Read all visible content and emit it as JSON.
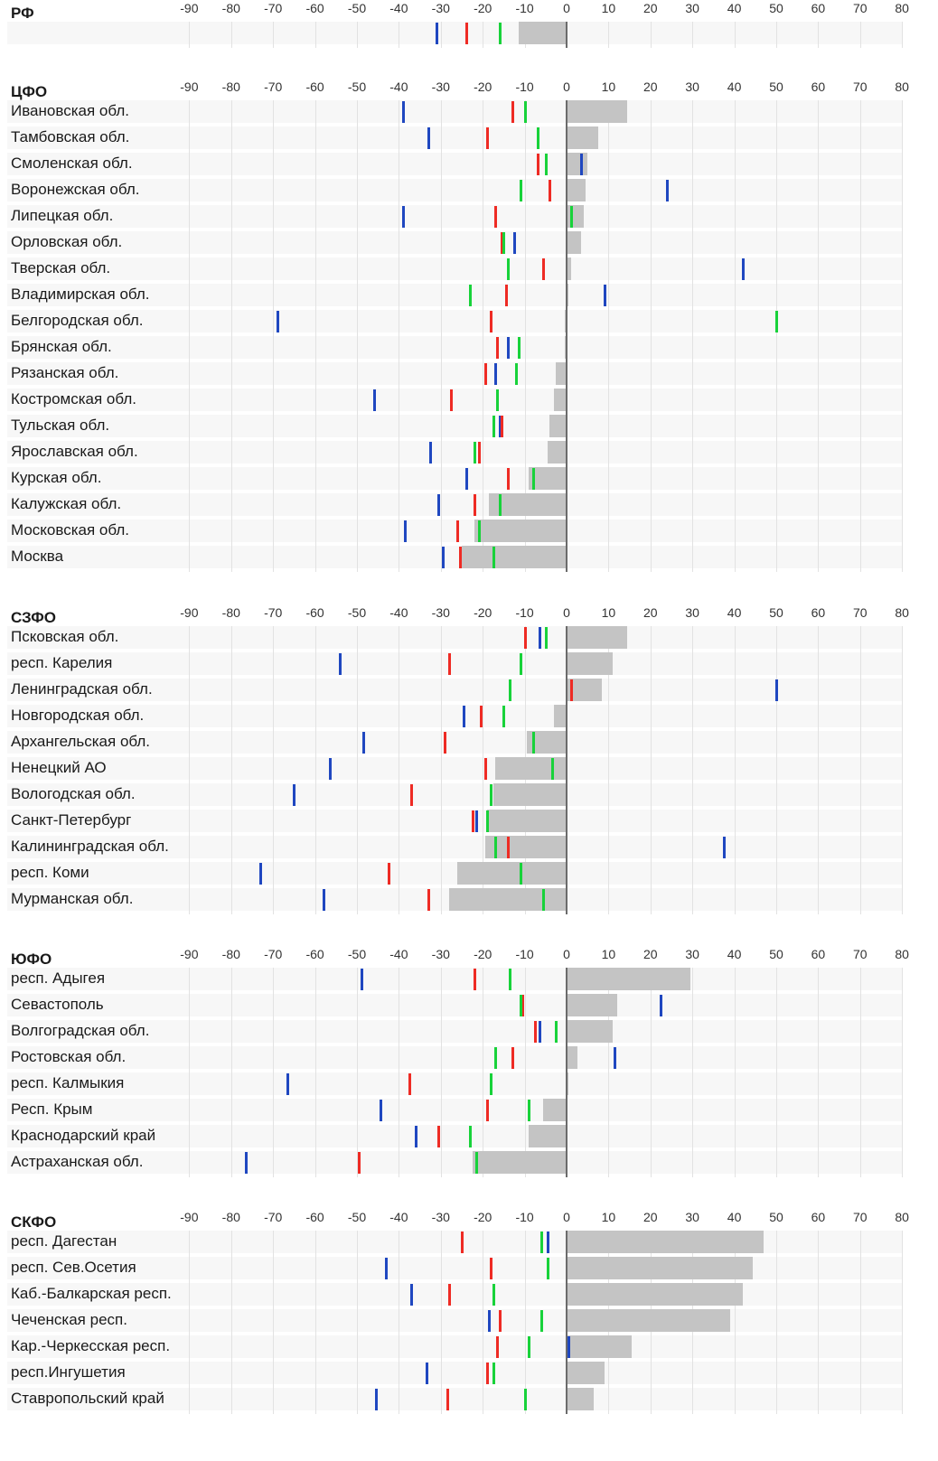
{
  "chart_data": {
    "type": "bar",
    "xlim": [
      -90,
      80
    ],
    "ticks": [
      -90,
      -80,
      -70,
      -60,
      -50,
      -40,
      -30,
      -20,
      -10,
      0,
      10,
      20,
      30,
      40,
      50,
      60,
      70,
      80
    ],
    "marker_colors": {
      "blue": "#1f47c0",
      "red": "#ee2b24",
      "green": "#18d23a"
    },
    "bar_color": "#c4c4c4",
    "groups": [
      {
        "title": "РФ",
        "rows": [
          {
            "label": "",
            "bar": -11.5,
            "blue": -31,
            "red": -24,
            "green": -16
          }
        ]
      },
      {
        "title": "ЦФО",
        "rows": [
          {
            "label": "Ивановская обл.",
            "bar": 14.5,
            "blue": -39,
            "red": -13,
            "green": -10
          },
          {
            "label": "Тамбовская обл.",
            "bar": 7.5,
            "blue": -33,
            "red": -19,
            "green": -7
          },
          {
            "label": "Смоленская обл.",
            "bar": 5,
            "blue": 3.5,
            "red": -7,
            "green": -5
          },
          {
            "label": "Воронежская обл.",
            "bar": 4.5,
            "blue": 24,
            "red": -4,
            "green": -11
          },
          {
            "label": "Липецкая обл.",
            "bar": 4,
            "blue": -39,
            "red": -17,
            "green": 1
          },
          {
            "label": "Орловская обл.",
            "bar": 3.5,
            "blue": -12.5,
            "red": -15.5,
            "green": -15
          },
          {
            "label": "Тверская обл.",
            "bar": 1,
            "blue": 42,
            "red": -5.5,
            "green": -14
          },
          {
            "label": "Владимирская обл.",
            "bar": 0.5,
            "blue": 9,
            "red": -14.5,
            "green": -23
          },
          {
            "label": "Белгородская обл.",
            "bar": -0.5,
            "blue": -69,
            "red": -18,
            "green": 50
          },
          {
            "label": "Брянская обл.",
            "bar": -0.5,
            "blue": -14,
            "red": -16.5,
            "green": -11.5
          },
          {
            "label": "Рязанская обл.",
            "bar": -2.5,
            "blue": -17,
            "red": -19.5,
            "green": -12
          },
          {
            "label": "Костромская обл.",
            "bar": -3,
            "blue": -46,
            "red": -27.5,
            "green": -16.5
          },
          {
            "label": "Тульская обл.",
            "bar": -4,
            "blue": -16,
            "red": -15.5,
            "green": -17.5
          },
          {
            "label": "Ярославская обл.",
            "bar": -4.5,
            "blue": -32.5,
            "red": -21,
            "green": -22
          },
          {
            "label": "Курская обл.",
            "bar": -9,
            "blue": -24,
            "red": -14,
            "green": -8
          },
          {
            "label": "Калужская обл.",
            "bar": -18.5,
            "blue": -30.5,
            "red": -22,
            "green": -16
          },
          {
            "label": "Московская обл.",
            "bar": -22,
            "blue": -38.5,
            "red": -26,
            "green": -21
          },
          {
            "label": "Москва",
            "bar": -25,
            "blue": -29.5,
            "red": -25.5,
            "green": -17.5
          }
        ]
      },
      {
        "title": "СЗФО",
        "rows": [
          {
            "label": "Псковская обл.",
            "bar": 14.5,
            "blue": -6.5,
            "red": -10,
            "green": -5
          },
          {
            "label": "респ. Карелия",
            "bar": 11,
            "blue": -54,
            "red": -28,
            "green": -11
          },
          {
            "label": "Ленинградская обл.",
            "bar": 8.5,
            "blue": 50,
            "red": 1,
            "green": -13.5
          },
          {
            "label": "Новгородская обл.",
            "bar": -3,
            "blue": -24.5,
            "red": -20.5,
            "green": -15
          },
          {
            "label": "Архангельская обл.",
            "bar": -9.5,
            "blue": -48.5,
            "red": -29,
            "green": -8
          },
          {
            "label": "Ненецкий АО",
            "bar": -17,
            "blue": -56.5,
            "red": -19.5,
            "green": -3.5
          },
          {
            "label": "Вологодская обл.",
            "bar": -17.5,
            "blue": -65,
            "red": -37,
            "green": -18
          },
          {
            "label": "Санкт-Петербург",
            "bar": -19,
            "blue": -21.5,
            "red": -22.5,
            "green": -19
          },
          {
            "label": "Калининградская обл.",
            "bar": -19.5,
            "blue": 37.5,
            "red": -14,
            "green": -17
          },
          {
            "label": "респ. Коми",
            "bar": -26,
            "blue": -73,
            "red": -42.5,
            "green": -11
          },
          {
            "label": "Мурманская обл.",
            "bar": -28,
            "blue": -58,
            "red": -33,
            "green": -5.5
          }
        ]
      },
      {
        "title": "ЮФО",
        "rows": [
          {
            "label": "респ. Адыгея",
            "bar": 29.5,
            "blue": -49,
            "red": -22,
            "green": -13.5
          },
          {
            "label": "Севастополь",
            "bar": 12,
            "blue": 22.5,
            "red": -10.5,
            "green": -11
          },
          {
            "label": "Волгоградская обл.",
            "bar": 11,
            "blue": -6.5,
            "red": -7.5,
            "green": -2.5
          },
          {
            "label": "Ростовская обл.",
            "bar": 2.5,
            "blue": 11.5,
            "red": -13,
            "green": -17
          },
          {
            "label": "респ. Калмыкия",
            "bar": 0.5,
            "blue": -66.5,
            "red": -37.5,
            "green": -18
          },
          {
            "label": "Респ. Крым",
            "bar": -5.5,
            "blue": -44.5,
            "red": -19,
            "green": -9
          },
          {
            "label": "Краснодарский край",
            "bar": -9,
            "blue": -36,
            "red": -30.5,
            "green": -23
          },
          {
            "label": "Астраханская обл.",
            "bar": -22.5,
            "blue": -76.5,
            "red": -49.5,
            "green": -21.5
          }
        ]
      },
      {
        "title": "СКФО",
        "rows": [
          {
            "label": "респ. Дагестан",
            "bar": 47,
            "blue": -4.5,
            "red": -25,
            "green": -6
          },
          {
            "label": "респ. Сев.Осетия",
            "bar": 44.5,
            "blue": -43,
            "red": -18,
            "green": -4.5
          },
          {
            "label": "Каб.-Балкарская респ.",
            "bar": 42,
            "blue": -37,
            "red": -28,
            "green": -17.5
          },
          {
            "label": "Чеченская респ.",
            "bar": 39,
            "blue": -18.5,
            "red": -16,
            "green": -6
          },
          {
            "label": "Кар.-Черкесская респ.",
            "bar": 15.5,
            "blue": 0.5,
            "red": -16.5,
            "green": -9
          },
          {
            "label": "респ.Ингушетия",
            "bar": 9,
            "blue": -33.5,
            "red": -19,
            "green": -17.5
          },
          {
            "label": "Ставропольский край",
            "bar": 6.5,
            "blue": -45.5,
            "red": -28.5,
            "green": -10
          }
        ]
      }
    ]
  }
}
